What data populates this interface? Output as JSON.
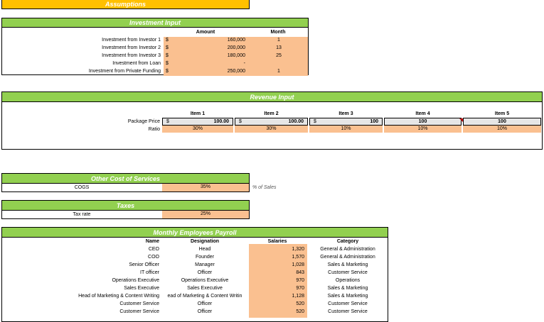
{
  "assumptions": {
    "title": "Assumptions"
  },
  "investment": {
    "title": "Investment Input",
    "col_amount": "Amount",
    "col_month": "Month",
    "rows": [
      {
        "label": "Investment from Investor 1",
        "cur": "$",
        "amount": "160,000",
        "month": "1"
      },
      {
        "label": "Investment from Investor 2",
        "cur": "$",
        "amount": "200,000",
        "month": "13"
      },
      {
        "label": "Investment from Investor 3",
        "cur": "$",
        "amount": "180,000",
        "month": "25"
      },
      {
        "label": "Investment from Loan",
        "cur": "$",
        "amount": "-",
        "month": ""
      },
      {
        "label": "Investment from Private Funding",
        "cur": "$",
        "amount": "250,000",
        "month": "1"
      }
    ]
  },
  "revenue": {
    "title": "Revenue Input",
    "items": [
      "Item 1",
      "Item 2",
      "Item 3",
      "Item 4",
      "Item 5"
    ],
    "price_label": "Package Price",
    "ratio_label": "Ratio",
    "prices": [
      {
        "cur": "$",
        "value": "100.00"
      },
      {
        "cur": "$",
        "value": "100.00"
      },
      {
        "cur": "$",
        "value": "100"
      },
      {
        "cur": "",
        "value": "100"
      },
      {
        "cur": "",
        "value": "100"
      }
    ],
    "ratios": [
      "30%",
      "30%",
      "10%",
      "10%",
      "10%"
    ]
  },
  "other_cost": {
    "title": "Other Cost of Services",
    "label": "COGS",
    "value": "35%",
    "note": "% of Sales"
  },
  "taxes": {
    "title": "Taxes",
    "label": "Tax rate",
    "value": "25%"
  },
  "payroll": {
    "title": "Monthly Employees Payroll",
    "col_name": "Name",
    "col_designation": "Designation",
    "col_salaries": "Salaries",
    "col_category": "Category",
    "rows": [
      {
        "name": "CEO",
        "designation": "Head",
        "salary": "1,320",
        "category": "General & Administration"
      },
      {
        "name": "COO",
        "designation": "Founder",
        "salary": "1,570",
        "category": "General & Administration"
      },
      {
        "name": "Senior Officer",
        "designation": "Manager",
        "salary": "1,028",
        "category": "Sales & Marketing"
      },
      {
        "name": "IT officer",
        "designation": "Officer",
        "salary": "843",
        "category": "Customer Service"
      },
      {
        "name": "Operations Executive",
        "designation": "Operations Executive",
        "salary": "970",
        "category": "Operations"
      },
      {
        "name": "Sales Executive",
        "designation": "Sales Executive",
        "salary": "970",
        "category": "Sales & Marketing"
      },
      {
        "name": "Head of Marketing & Content Writing",
        "designation": "ead of Marketing & Content Writin",
        "salary": "1,128",
        "category": "Sales & Marketing"
      },
      {
        "name": "Customer Service",
        "designation": "Officer",
        "salary": "520",
        "category": "Customer Service"
      },
      {
        "name": "Customer Service",
        "designation": "Officer",
        "salary": "520",
        "category": "Customer Service"
      }
    ]
  }
}
